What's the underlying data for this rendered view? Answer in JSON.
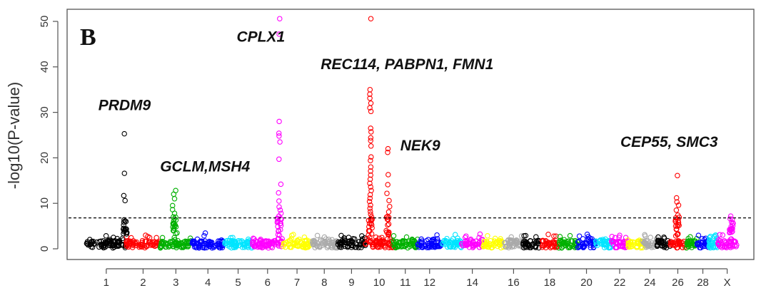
{
  "chart_data": {
    "type": "scatter",
    "subtype": "manhattan",
    "panel_label": "B",
    "ylabel": "-log10(P-value)",
    "xlabel": "",
    "ylim": [
      0,
      52
    ],
    "y_ticks": [
      0,
      10,
      20,
      30,
      40,
      50
    ],
    "significance_threshold": 6.8,
    "chromosomes": [
      "1",
      "2",
      "3",
      "4",
      "5",
      "6",
      "7",
      "8",
      "9",
      "10",
      "11",
      "12",
      "13",
      "14",
      "15",
      "16",
      "17",
      "18",
      "19",
      "20",
      "21",
      "22",
      "23",
      "24",
      "25",
      "26",
      "27",
      "28",
      "29",
      "X"
    ],
    "x_tick_labels": [
      "1",
      "2",
      "3",
      "4",
      "5",
      "6",
      "7",
      "8",
      "9",
      "10",
      "11",
      "12",
      "14",
      "16",
      "18",
      "20",
      "22",
      "24",
      "26",
      "28",
      "X"
    ],
    "x_tick_chromosomes": [
      "1",
      "2",
      "3",
      "4",
      "5",
      "6",
      "7",
      "8",
      "9",
      "10",
      "11",
      "12",
      "14",
      "16",
      "18",
      "20",
      "22",
      "24",
      "26",
      "28",
      "X"
    ],
    "colors": {
      "1": "#000000",
      "2": "#ff0000",
      "3": "#00b000",
      "4": "#0000ff",
      "5": "#00e5ff",
      "6": "#ff00ff",
      "7": "#ffff00",
      "8": "#aaaaaa",
      "9": "#000000",
      "10": "#ff0000",
      "11": "#00b000",
      "12": "#0000ff",
      "13": "#00e5ff",
      "14": "#ff00ff",
      "15": "#ffff00",
      "16": "#aaaaaa",
      "17": "#000000",
      "18": "#ff0000",
      "19": "#00b000",
      "20": "#0000ff",
      "21": "#00e5ff",
      "22": "#ff00ff",
      "23": "#ffff00",
      "24": "#aaaaaa",
      "25": "#000000",
      "26": "#ff0000",
      "27": "#00b000",
      "28": "#0000ff",
      "29": "#00e5ff",
      "X": "#ff00ff"
    },
    "peaks": [
      {
        "chr": "1",
        "pos": 0.97,
        "values": [
          25.3,
          16.6,
          11.7,
          10.6,
          6.0,
          5.2
        ]
      },
      {
        "chr": "3",
        "pos": 0.45,
        "values": [
          12.8,
          12.0,
          11.0,
          9.5,
          8.6,
          7.8,
          7.0,
          6.3,
          5.6,
          4.8
        ]
      },
      {
        "chr": "6",
        "pos": 0.88,
        "values": [
          50.6,
          47.2,
          28.0,
          25.4,
          24.8,
          23.5,
          19.7,
          14.2,
          12.3,
          10.5,
          9.2,
          8.5,
          7.8,
          7.2,
          6.6
        ]
      },
      {
        "chr": "10",
        "pos": 0.18,
        "values": [
          50.6,
          35.0,
          34.0,
          33.1,
          32.0,
          31.0,
          30.2,
          26.5,
          25.7,
          24.4,
          23.8,
          22.6,
          20.2,
          19.4,
          18.0,
          17.1,
          16.2,
          15.3,
          14.4,
          13.6,
          12.8,
          11.9,
          11.1,
          10.4,
          9.6,
          8.9,
          8.2,
          7.6,
          7.0
        ]
      },
      {
        "chr": "10",
        "pos": 0.82,
        "values": [
          22.0,
          21.2,
          16.3,
          14.1,
          12.2,
          10.6,
          9.3,
          8.1,
          7.1
        ]
      },
      {
        "chr": "26",
        "pos": 0.45,
        "values": [
          16.1,
          11.2,
          10.3,
          9.6,
          8.5,
          7.4,
          6.8,
          6.2
        ]
      },
      {
        "chr": "X",
        "pos": 0.72,
        "values": [
          7.2,
          6.4,
          5.9,
          5.1
        ]
      }
    ],
    "annotations": [
      {
        "text": "PRDM9",
        "chr": "1",
        "pos": 0.3,
        "y": 30.5
      },
      {
        "text": "GCLM,MSH4",
        "chr": "3",
        "pos": 0.0,
        "y": 17.0
      },
      {
        "text": "CPLX1",
        "chr": "6",
        "pos": -0.5,
        "y": 45.5
      },
      {
        "text": "REC114, PABPN1, FMN1",
        "chr": "9",
        "pos": -0.6,
        "y": 39.5
      },
      {
        "text": "NEK9",
        "chr": "11",
        "pos": 0.3,
        "y": 21.6
      },
      {
        "text": "CEP55, SMC3",
        "chr": "23",
        "pos": -0.5,
        "y": 22.4
      }
    ]
  }
}
